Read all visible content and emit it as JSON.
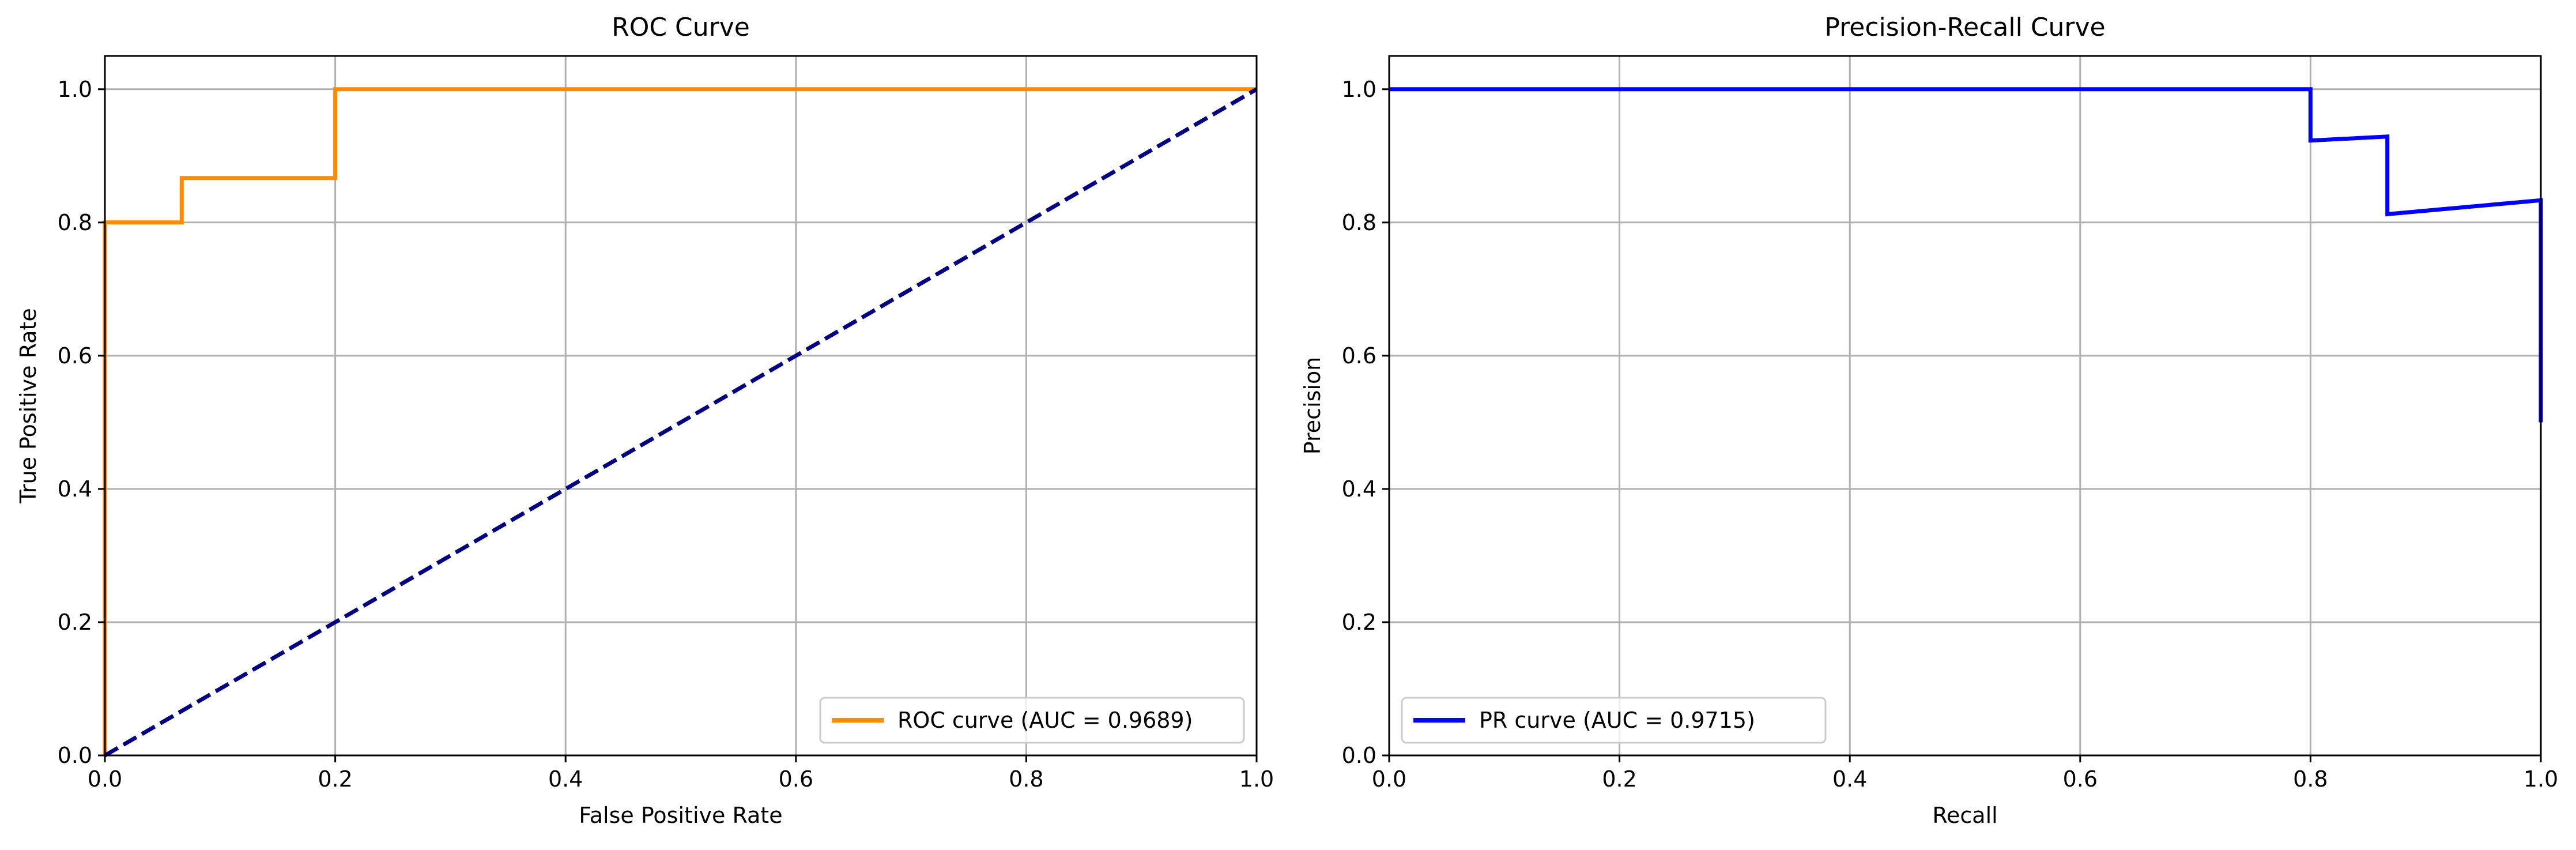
{
  "chart_data": [
    {
      "type": "line",
      "title": "ROC Curve",
      "xlabel": "False Positive Rate",
      "ylabel": "True Positive Rate",
      "xlim": [
        0.0,
        1.0
      ],
      "ylim": [
        0.0,
        1.05
      ],
      "xticks": [
        "0.0",
        "0.2",
        "0.4",
        "0.6",
        "0.8",
        "1.0"
      ],
      "yticks": [
        "0.0",
        "0.2",
        "0.4",
        "0.6",
        "0.8",
        "1.0"
      ],
      "grid": true,
      "legend_position": "lower-right",
      "series": [
        {
          "name": "ROC curve (AUC = 0.9689)",
          "color": "#ff8c00",
          "style": "solid",
          "in_legend": true,
          "x": [
            0.0,
            0.0,
            0.0,
            0.0667,
            0.0667,
            0.2,
            0.2,
            1.0
          ],
          "y": [
            0.0,
            0.0667,
            0.8,
            0.8,
            0.8667,
            0.8667,
            1.0,
            1.0
          ]
        },
        {
          "color": "#000080",
          "style": "dashed",
          "in_legend": false,
          "x": [
            0.0,
            1.0
          ],
          "y": [
            0.0,
            1.0
          ]
        }
      ]
    },
    {
      "type": "line",
      "title": "Precision-Recall Curve",
      "xlabel": "Recall",
      "ylabel": "Precision",
      "xlim": [
        0.0,
        1.0
      ],
      "ylim": [
        0.0,
        1.05
      ],
      "xticks": [
        "0.0",
        "0.2",
        "0.4",
        "0.6",
        "0.8",
        "1.0"
      ],
      "yticks": [
        "0.0",
        "0.2",
        "0.4",
        "0.6",
        "0.8",
        "1.0"
      ],
      "grid": true,
      "legend_position": "lower-left",
      "series": [
        {
          "name": "PR curve (AUC = 0.9715)",
          "color": "#0000ff",
          "style": "solid",
          "in_legend": true,
          "x": [
            0.0,
            0.8,
            0.8,
            0.8667,
            0.8667,
            1.0,
            1.0
          ],
          "y": [
            1.0,
            1.0,
            0.923,
            0.929,
            0.8125,
            0.8333,
            0.5
          ]
        }
      ]
    }
  ]
}
